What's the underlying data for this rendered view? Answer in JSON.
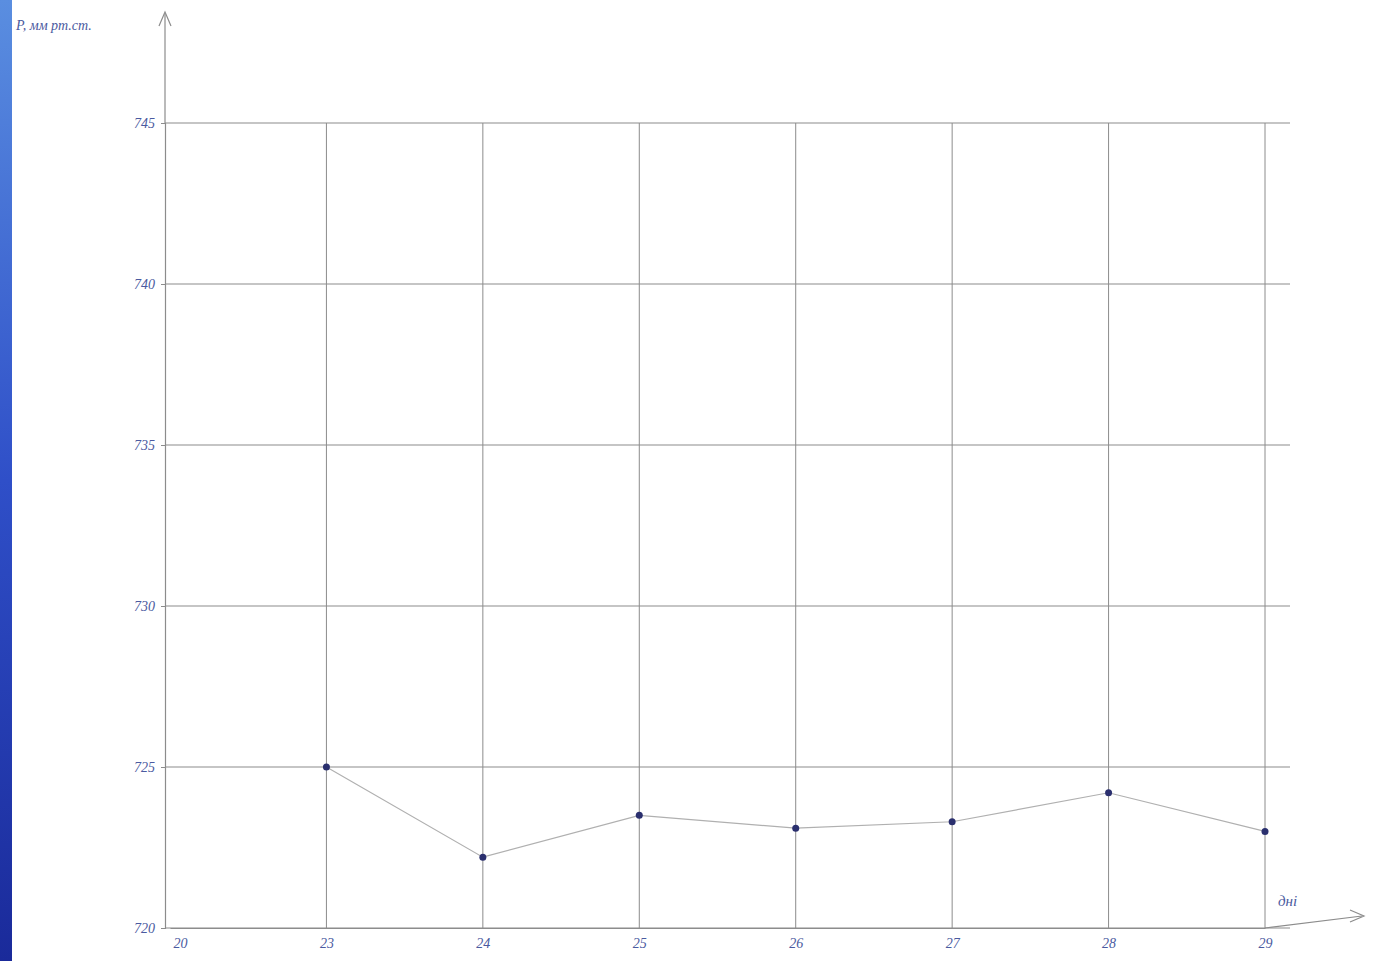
{
  "chart_data": {
    "type": "line",
    "y_label": "P, мм рт.ст.",
    "x_label": "дні",
    "categories": [
      "20",
      "23",
      "24",
      "25",
      "26",
      "27",
      "28",
      "29"
    ],
    "values": [
      null,
      725.0,
      722.2,
      723.5,
      723.1,
      723.3,
      724.2,
      723.0
    ],
    "color": "#2a2f6e",
    "marker": "circle",
    "ylim": [
      720,
      745
    ],
    "yticks": [
      720,
      725,
      730,
      735,
      740,
      745
    ],
    "grid": true
  }
}
